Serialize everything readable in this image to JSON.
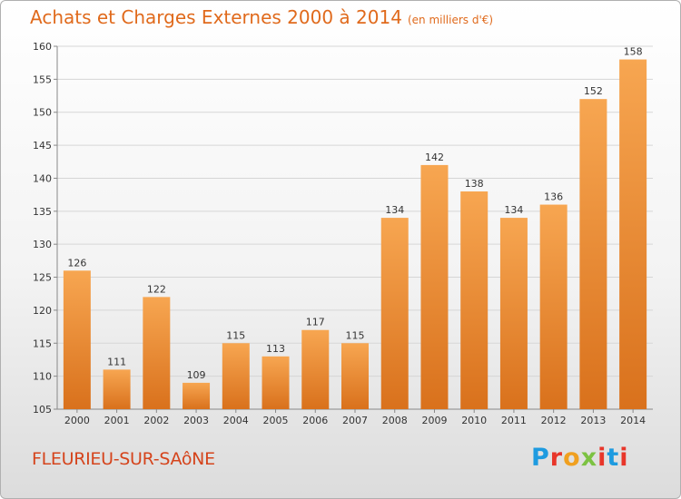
{
  "header": {
    "title": "Achats et Charges Externes 2000 à 2014",
    "subtitle": "(en milliers d'€)"
  },
  "footer": {
    "commune": "FLEURIEU-SUR-SAôNE",
    "logo": "Proxiti",
    "logo_colors": [
      "#1e9be0",
      "#e8362a",
      "#f0a020",
      "#7cc242",
      "#e8362a",
      "#1e9be0",
      "#e8362a"
    ]
  },
  "chart_data": {
    "type": "bar",
    "categories": [
      "2000",
      "2001",
      "2002",
      "2003",
      "2004",
      "2005",
      "2006",
      "2007",
      "2008",
      "2009",
      "2010",
      "2011",
      "2012",
      "2013",
      "2014"
    ],
    "values": [
      126,
      111,
      122,
      109,
      115,
      113,
      117,
      115,
      134,
      142,
      138,
      134,
      136,
      152,
      158
    ],
    "data_labels": [
      "126",
      "111",
      "122",
      "109",
      "115",
      "113",
      "117",
      "115",
      "134",
      "142",
      "138",
      "134",
      "136",
      "152",
      "158"
    ],
    "ylim": [
      105,
      160
    ],
    "yticks": [
      105,
      110,
      115,
      120,
      125,
      130,
      135,
      140,
      145,
      150,
      155,
      160
    ],
    "ytick_labels": [
      "105",
      "110",
      "115",
      "120",
      "125",
      "130",
      "135",
      "140",
      "145",
      "150",
      "155",
      "160"
    ],
    "grid": true,
    "bar_color_top": "#f7a651",
    "bar_color_bottom": "#d9711c",
    "label_color": "#333333"
  }
}
